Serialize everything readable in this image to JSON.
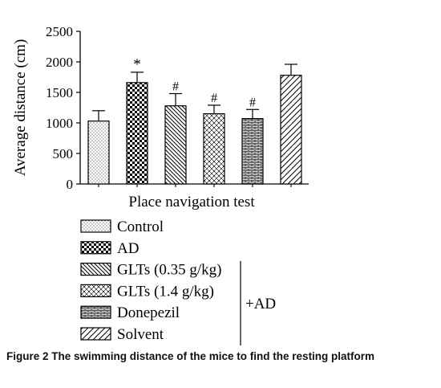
{
  "chart_data": {
    "type": "bar",
    "categories": [
      "Control",
      "AD",
      "GLTs (0.35 g/kg)",
      "GLTs (1.4 g/kg)",
      "Donepezil",
      "Solvent"
    ],
    "values": [
      1030,
      1660,
      1280,
      1150,
      1070,
      1780
    ],
    "errors": [
      170,
      170,
      200,
      140,
      150,
      180
    ],
    "significance": [
      "",
      "*",
      "#",
      "#",
      "#",
      ""
    ],
    "patterns": [
      "dots",
      "checker",
      "diag-back",
      "crosshatch-dots",
      "brick",
      "diag-forward"
    ],
    "xlabel": "Place navigation test",
    "ylabel": "Average distance (cm)",
    "ylim": [
      0,
      2500
    ],
    "yticks": [
      0,
      500,
      1000,
      1500,
      2000,
      2500
    ],
    "legend": {
      "entries": [
        "Control",
        "AD",
        "GLTs (0.35 g/kg)",
        "GLTs (1.4 g/kg)",
        "Donepezil",
        "Solvent"
      ],
      "group_label": "+AD",
      "placement": "bottom"
    }
  },
  "caption": "Figure 2 The swimming distance of the mice to find the resting platform"
}
